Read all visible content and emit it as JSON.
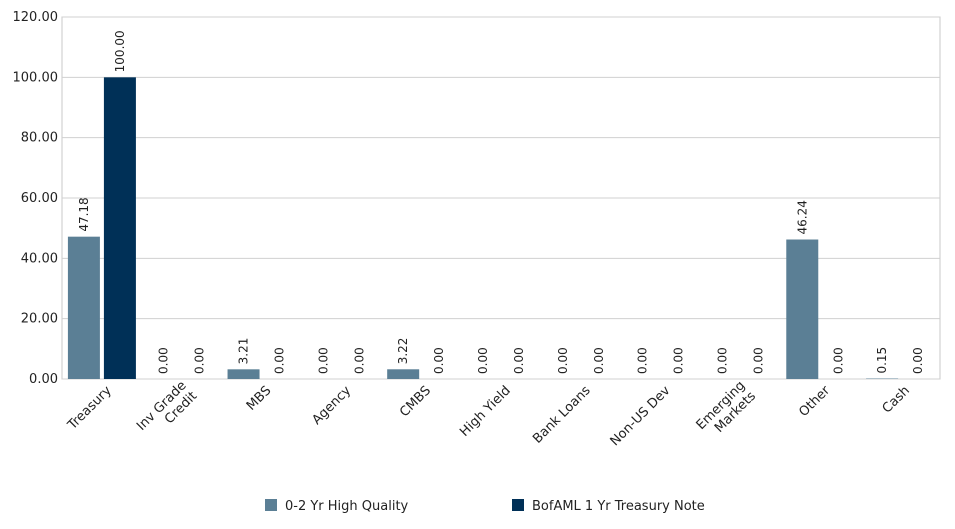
{
  "chart_data": {
    "type": "bar",
    "categories": [
      [
        "Treasury"
      ],
      [
        "Inv Grade",
        "Credit"
      ],
      [
        "MBS"
      ],
      [
        "Agency"
      ],
      [
        "CMBS"
      ],
      [
        "High Yield"
      ],
      [
        "Bank Loans"
      ],
      [
        "Non-US Dev"
      ],
      [
        "Emerging",
        "Markets"
      ],
      [
        "Other"
      ],
      [
        "Cash"
      ]
    ],
    "series": [
      {
        "name": "0-2 Yr High Quality",
        "color": "#5b7f95",
        "values": [
          47.18,
          0.0,
          3.21,
          0.0,
          3.22,
          0.0,
          0.0,
          0.0,
          0.0,
          46.24,
          0.15
        ],
        "labels": [
          "47.18",
          "0.00",
          "3.21",
          "0.00",
          "3.22",
          "0.00",
          "0.00",
          "0.00",
          "0.00",
          "46.24",
          "0.15"
        ]
      },
      {
        "name": "BofAML 1 Yr Treasury Note",
        "color": "#003057",
        "values": [
          100.0,
          0.0,
          0.0,
          0.0,
          0.0,
          0.0,
          0.0,
          0.0,
          0.0,
          0.0,
          0.0
        ],
        "labels": [
          "100.00",
          "0.00",
          "0.00",
          "0.00",
          "0.00",
          "0.00",
          "0.00",
          "0.00",
          "0.00",
          "0.00",
          "0.00"
        ]
      }
    ],
    "ylim": [
      0,
      120
    ],
    "yticks": [
      0,
      20,
      40,
      60,
      80,
      100,
      120
    ],
    "ytick_labels": [
      "0.00",
      "20.00",
      "40.00",
      "60.00",
      "80.00",
      "100.00",
      "120.00"
    ],
    "grid": "horizontal",
    "legend_position": "bottom",
    "title": "",
    "xlabel": "",
    "ylabel": ""
  }
}
